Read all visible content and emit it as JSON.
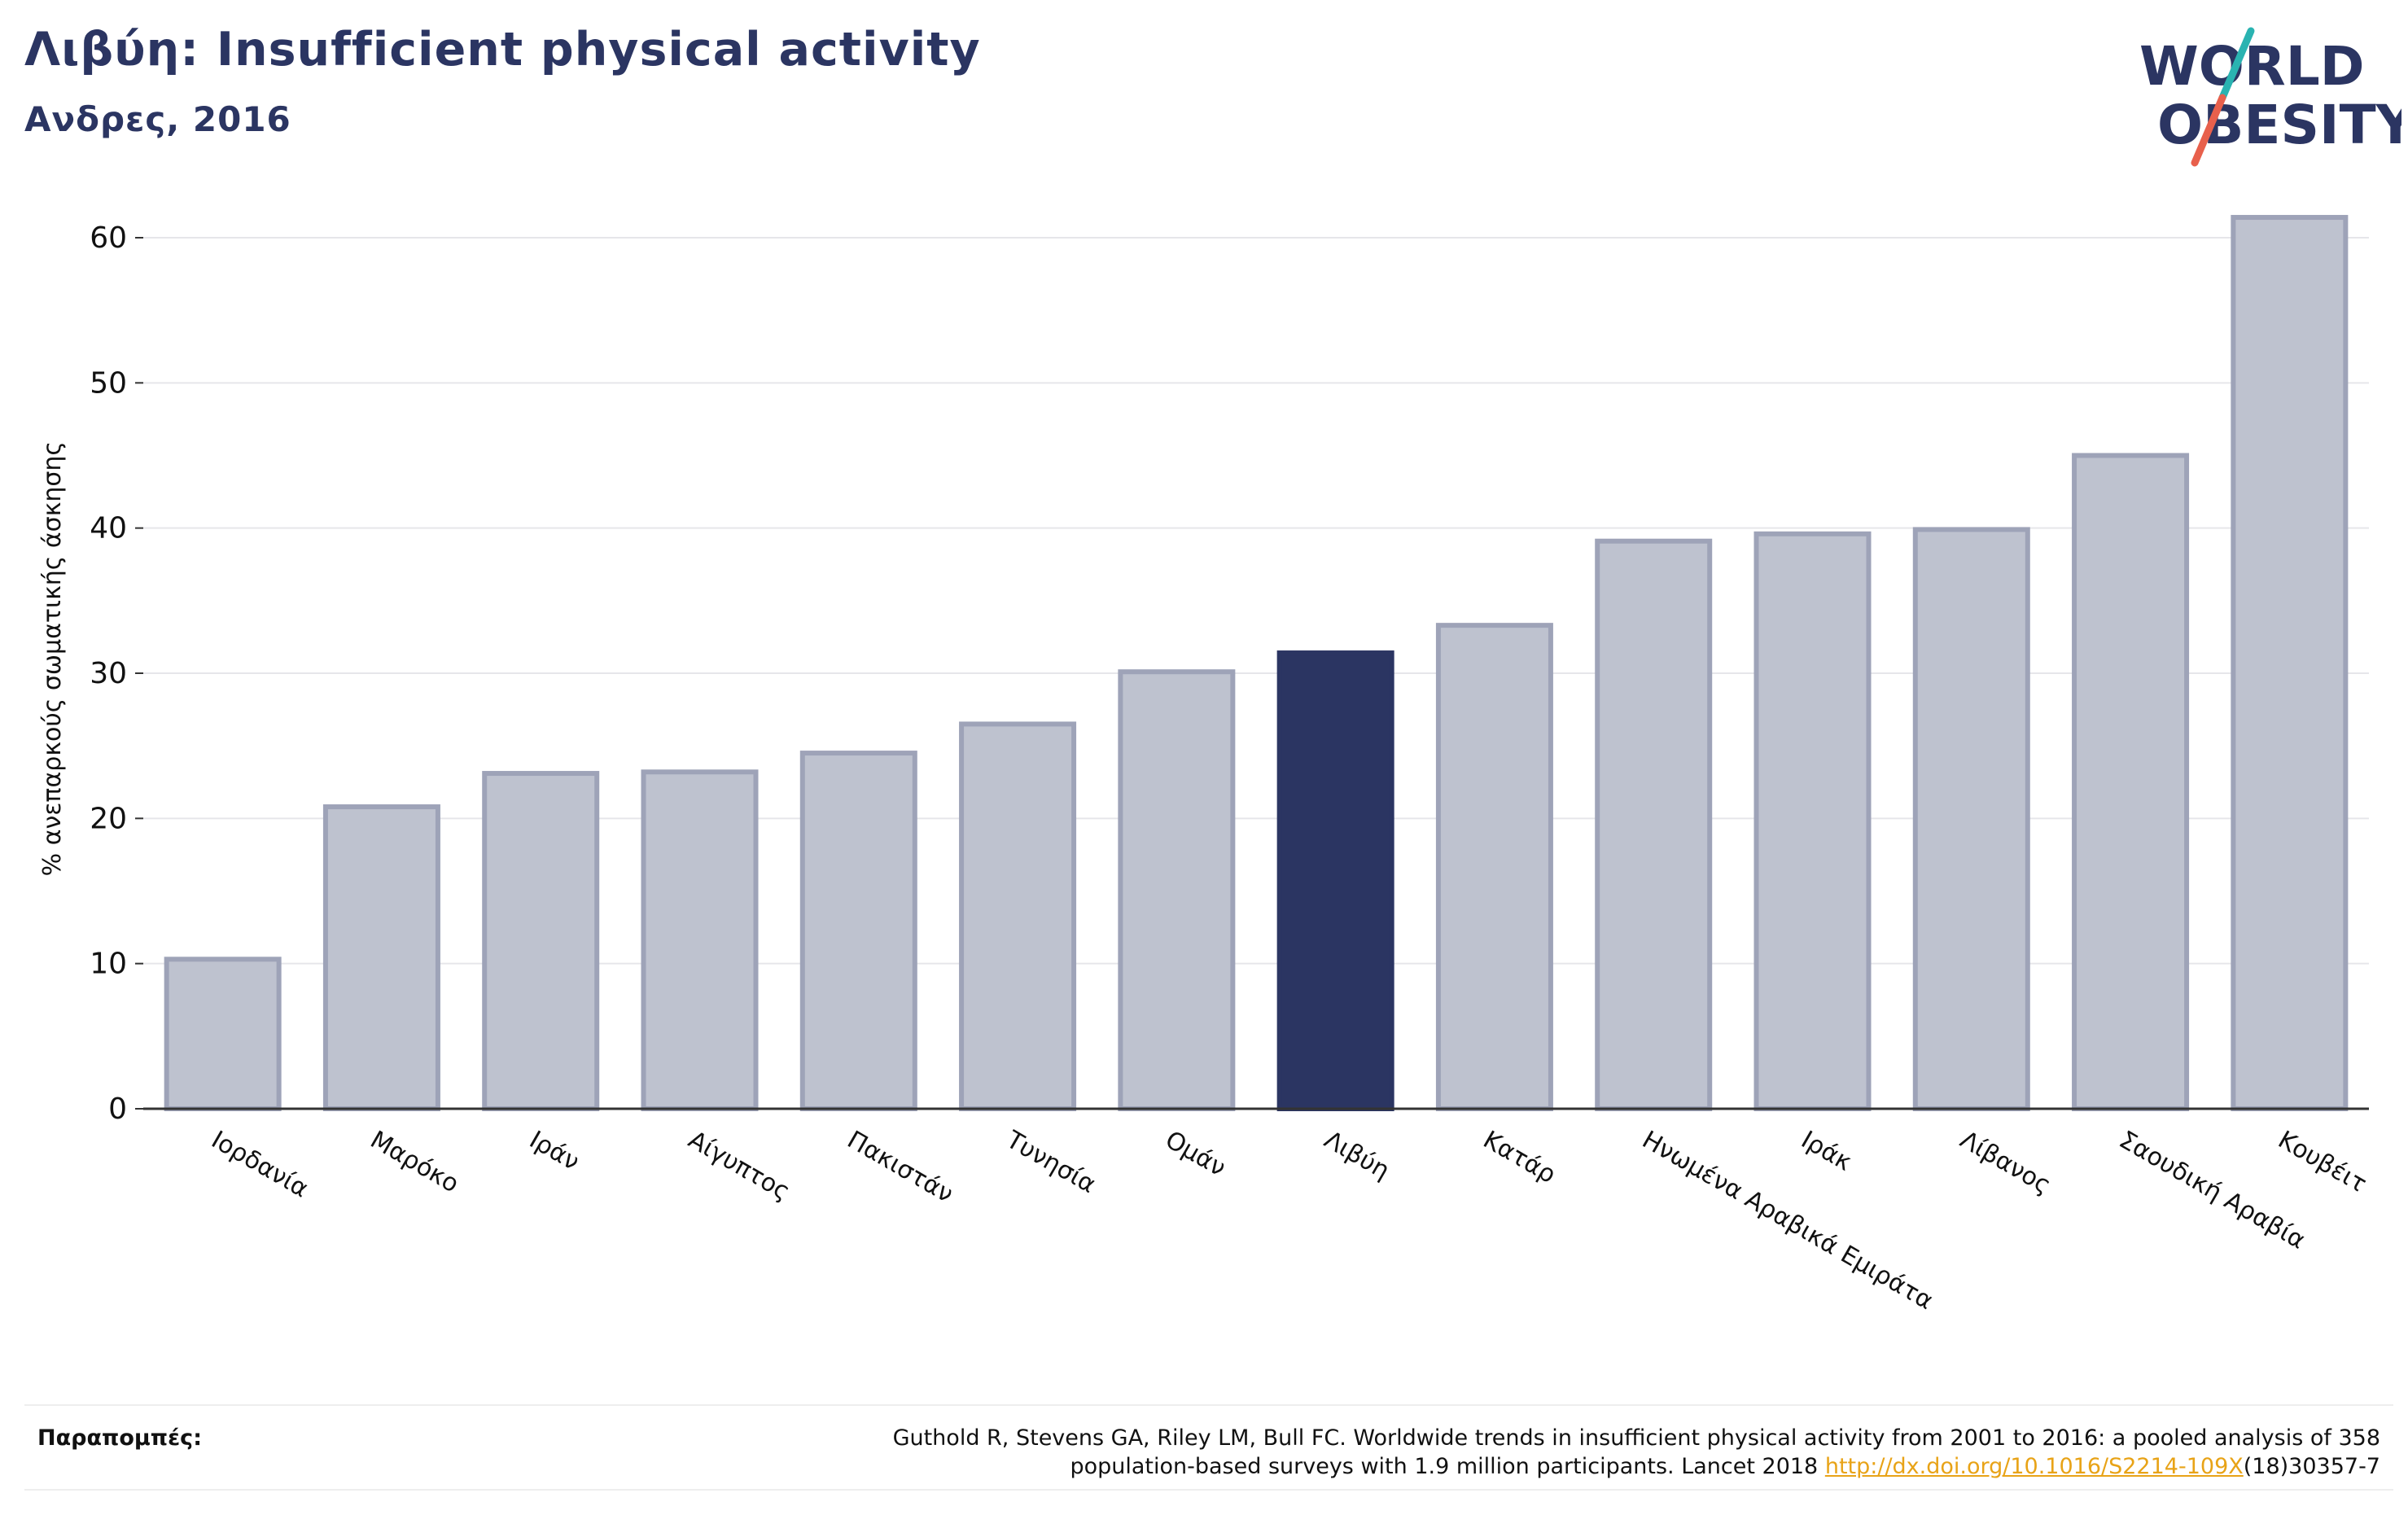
{
  "header": {
    "title": "Λιβύη: Insufficient physical activity",
    "subtitle": "Ανδρες, 2016"
  },
  "logo": {
    "line1": "WORLD",
    "line2": "OBESITY",
    "colors": {
      "text": "#2b3562",
      "slash_top": "#2ab3b1",
      "slash_bottom": "#e8604c"
    }
  },
  "colors": {
    "highlight_bar": "#2b3562",
    "other_bar_fill": "#bec2cf",
    "other_bar_stroke": "#9ea3b8",
    "grid": "#e6e6ea",
    "axis": "#333333",
    "link": "#e8a317"
  },
  "chart_data": {
    "type": "bar",
    "ylabel": "% ανεπαρκούς σωματικής άσκησης",
    "ylim": [
      0,
      63
    ],
    "yticks": [
      0,
      10,
      20,
      30,
      40,
      50,
      60
    ],
    "grid": true,
    "highlight": "Λιβύη",
    "categories": [
      "Ιορδανία",
      "Μαρόκο",
      "Ιράν",
      "Αίγυπτος",
      "Πακιστάν",
      "Τυνησία",
      "Ομάν",
      "Λιβύη",
      "Κατάρ",
      "Ηνωμένα Αραβικά Εμιράτα",
      "Ιράκ",
      "Λίβανος",
      "Σαουδική Αραβία",
      "Κουβέιτ"
    ],
    "values": [
      10.3,
      20.8,
      23.1,
      23.2,
      24.5,
      26.5,
      30.1,
      31.4,
      33.3,
      39.1,
      39.6,
      39.9,
      45.0,
      61.4
    ]
  },
  "footer": {
    "label": "Παραπομπές:",
    "citation_line1": "Guthold R, Stevens GA, Riley LM, Bull FC. Worldwide trends in insufficient physical activity from 2001 to 2016: a pooled analysis of 358",
    "citation_line2_prefix": "population-based surveys with 1.9 million participants. Lancet 2018 ",
    "citation_link": "http://dx.doi.org/10.1016/S2214-109X",
    "citation_line2_suffix": "(18)30357-7"
  }
}
